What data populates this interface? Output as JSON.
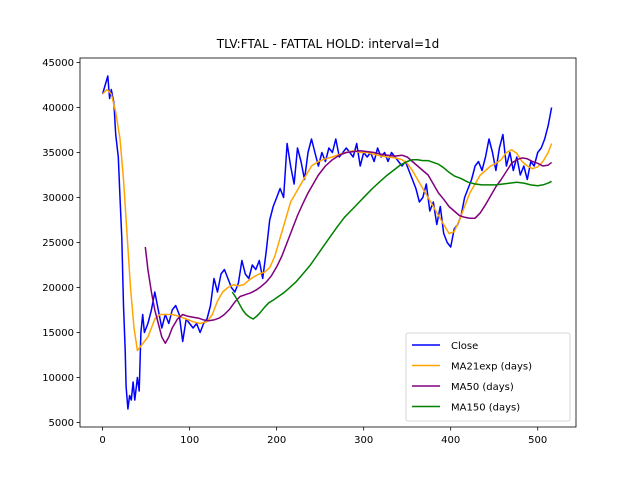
{
  "chart_data": {
    "type": "line",
    "title": "TLV:FTAL - FATTAL HOLD: interval=1d",
    "xlabel": "",
    "ylabel": "",
    "xlim": [
      -26,
      544
    ],
    "ylim": [
      4500,
      45500
    ],
    "x_ticks": [
      0,
      100,
      200,
      300,
      400,
      500
    ],
    "y_ticks": [
      5000,
      10000,
      15000,
      20000,
      25000,
      30000,
      35000,
      40000,
      45000
    ],
    "grid": false,
    "legend_position": "lower-right",
    "series": [
      {
        "name": "Close",
        "color": "#0000ff",
        "x": [
          0,
          3,
          6,
          8,
          10,
          13,
          15,
          18,
          20,
          22,
          24,
          26,
          27,
          29,
          31,
          33,
          35,
          37,
          40,
          42,
          44,
          46,
          48,
          52,
          56,
          60,
          64,
          68,
          72,
          76,
          80,
          84,
          88,
          92,
          96,
          100,
          104,
          108,
          112,
          116,
          120,
          124,
          128,
          132,
          136,
          140,
          144,
          148,
          152,
          156,
          160,
          164,
          168,
          172,
          176,
          180,
          184,
          188,
          192,
          196,
          200,
          204,
          208,
          212,
          216,
          220,
          224,
          228,
          232,
          236,
          240,
          244,
          248,
          252,
          256,
          260,
          264,
          268,
          272,
          276,
          280,
          284,
          288,
          292,
          296,
          300,
          304,
          308,
          312,
          316,
          320,
          324,
          328,
          332,
          336,
          340,
          344,
          348,
          352,
          356,
          360,
          364,
          368,
          372,
          376,
          380,
          384,
          388,
          392,
          396,
          400,
          404,
          408,
          412,
          416,
          420,
          424,
          428,
          432,
          436,
          440,
          444,
          448,
          452,
          456,
          460,
          464,
          468,
          472,
          476,
          480,
          484,
          488,
          492,
          496,
          500,
          504,
          508,
          512,
          516
        ],
        "y": [
          41500,
          42500,
          43500,
          41000,
          42000,
          40500,
          37000,
          34500,
          30000,
          25500,
          18000,
          13000,
          9000,
          6500,
          8000,
          7500,
          9500,
          7500,
          10000,
          8500,
          15000,
          17000,
          15000,
          16000,
          17500,
          19500,
          17500,
          15500,
          17000,
          16000,
          17500,
          18000,
          17000,
          14000,
          16500,
          16000,
          15500,
          16000,
          15000,
          16000,
          16500,
          18000,
          21000,
          19500,
          21500,
          22000,
          21000,
          20000,
          19500,
          20500,
          23000,
          21500,
          21000,
          22500,
          22000,
          23000,
          21000,
          24000,
          27500,
          29000,
          30000,
          31000,
          30000,
          36000,
          33500,
          31500,
          35500,
          34000,
          32000,
          35000,
          36500,
          35000,
          33500,
          35000,
          34000,
          35500,
          35000,
          36500,
          34500,
          35000,
          35500,
          35000,
          34500,
          36000,
          33500,
          35000,
          34500,
          35000,
          34000,
          35500,
          34500,
          35000,
          34000,
          35000,
          34500,
          34000,
          33500,
          34000,
          33000,
          32000,
          31000,
          29500,
          30000,
          31500,
          28500,
          29500,
          27000,
          29000,
          26000,
          25000,
          24500,
          26500,
          27000,
          28000,
          30000,
          31000,
          32000,
          33500,
          34000,
          33000,
          34500,
          36500,
          35000,
          33000,
          35500,
          37000,
          33500,
          35000,
          33000,
          34500,
          32500,
          33500,
          32000,
          34000,
          33500,
          35000,
          35500,
          36500,
          38000,
          40000
        ]
      },
      {
        "name": "MA21exp (days)",
        "color": "#ffa500",
        "x": [
          0,
          5,
          10,
          15,
          20,
          24,
          28,
          32,
          36,
          40,
          44,
          48,
          52,
          56,
          60,
          66,
          72,
          80,
          88,
          96,
          104,
          112,
          120,
          126,
          132,
          138,
          144,
          150,
          156,
          162,
          168,
          174,
          180,
          186,
          192,
          198,
          204,
          210,
          216,
          222,
          228,
          234,
          240,
          248,
          256,
          264,
          272,
          280,
          288,
          296,
          304,
          312,
          320,
          328,
          336,
          344,
          350,
          356,
          362,
          368,
          374,
          380,
          386,
          392,
          398,
          404,
          410,
          416,
          422,
          428,
          434,
          440,
          446,
          452,
          458,
          464,
          470,
          476,
          482,
          488,
          494,
          500,
          506,
          512,
          516
        ],
        "y": [
          41500,
          42000,
          41500,
          39500,
          36500,
          32000,
          26000,
          20000,
          15500,
          13000,
          13500,
          14000,
          14500,
          15500,
          16500,
          17000,
          17000,
          17000,
          16800,
          16500,
          16200,
          16000,
          16200,
          17000,
          18500,
          19500,
          20000,
          20300,
          20200,
          20300,
          20800,
          21200,
          21500,
          21700,
          22200,
          23500,
          25500,
          27500,
          29500,
          30500,
          31500,
          32500,
          33500,
          34000,
          34300,
          34500,
          34800,
          35000,
          35200,
          35000,
          35000,
          34800,
          34600,
          34500,
          34400,
          34200,
          33800,
          33000,
          32000,
          31000,
          30000,
          29000,
          28000,
          27000,
          26000,
          26200,
          27500,
          29000,
          30500,
          31500,
          32500,
          33000,
          33500,
          33800,
          34200,
          35000,
          35300,
          34900,
          34000,
          33500,
          33200,
          33400,
          34000,
          35000,
          36000
        ]
      },
      {
        "name": "MA50 (days)",
        "color": "#800080",
        "x": [
          49,
          52,
          56,
          60,
          64,
          68,
          72,
          76,
          80,
          86,
          92,
          98,
          104,
          110,
          116,
          122,
          128,
          134,
          140,
          146,
          152,
          158,
          164,
          170,
          176,
          182,
          188,
          194,
          200,
          206,
          212,
          218,
          224,
          230,
          236,
          242,
          248,
          256,
          264,
          272,
          280,
          288,
          296,
          304,
          312,
          320,
          328,
          336,
          344,
          350,
          356,
          362,
          368,
          374,
          380,
          386,
          392,
          398,
          404,
          410,
          416,
          422,
          428,
          434,
          440,
          446,
          452,
          458,
          464,
          470,
          476,
          482,
          488,
          494,
          500,
          506,
          512,
          516
        ],
        "y": [
          24500,
          22000,
          19500,
          17500,
          16000,
          14500,
          13800,
          14500,
          15500,
          16500,
          17000,
          16800,
          16700,
          16600,
          16400,
          16300,
          16400,
          16600,
          17000,
          17600,
          18400,
          19000,
          19200,
          19400,
          19700,
          20100,
          20600,
          21300,
          22300,
          23500,
          25000,
          26500,
          28000,
          29300,
          30500,
          31500,
          32500,
          33500,
          34200,
          34700,
          35000,
          35100,
          35200,
          35100,
          35000,
          34800,
          34700,
          34600,
          34700,
          34500,
          34000,
          33500,
          33000,
          32500,
          31500,
          30500,
          29800,
          29000,
          28500,
          28000,
          27800,
          27700,
          27700,
          28300,
          29200,
          30200,
          31200,
          32000,
          32900,
          33800,
          34200,
          34400,
          34300,
          34000,
          33800,
          33500,
          33600,
          33900
        ]
      },
      {
        "name": "MA150 (days)",
        "color": "#008000",
        "x": [
          149,
          153,
          157,
          161,
          165,
          169,
          173,
          177,
          181,
          186,
          191,
          196,
          202,
          208,
          214,
          222,
          230,
          238,
          246,
          254,
          262,
          270,
          278,
          286,
          294,
          302,
          310,
          318,
          326,
          334,
          342,
          350,
          356,
          362,
          368,
          374,
          380,
          386,
          392,
          398,
          404,
          412,
          420,
          428,
          436,
          444,
          452,
          460,
          468,
          476,
          484,
          492,
          500,
          506,
          512,
          516
        ],
        "y": [
          19500,
          18900,
          18200,
          17500,
          17000,
          16700,
          16500,
          16800,
          17200,
          17800,
          18300,
          18600,
          19000,
          19400,
          19900,
          20600,
          21500,
          22400,
          23500,
          24600,
          25700,
          26800,
          27800,
          28600,
          29400,
          30200,
          31000,
          31700,
          32400,
          33000,
          33600,
          34000,
          34200,
          34200,
          34100,
          34100,
          33900,
          33700,
          33300,
          32800,
          32400,
          32100,
          31700,
          31500,
          31400,
          31400,
          31400,
          31500,
          31600,
          31700,
          31600,
          31400,
          31300,
          31400,
          31600,
          31800
        ]
      }
    ]
  }
}
